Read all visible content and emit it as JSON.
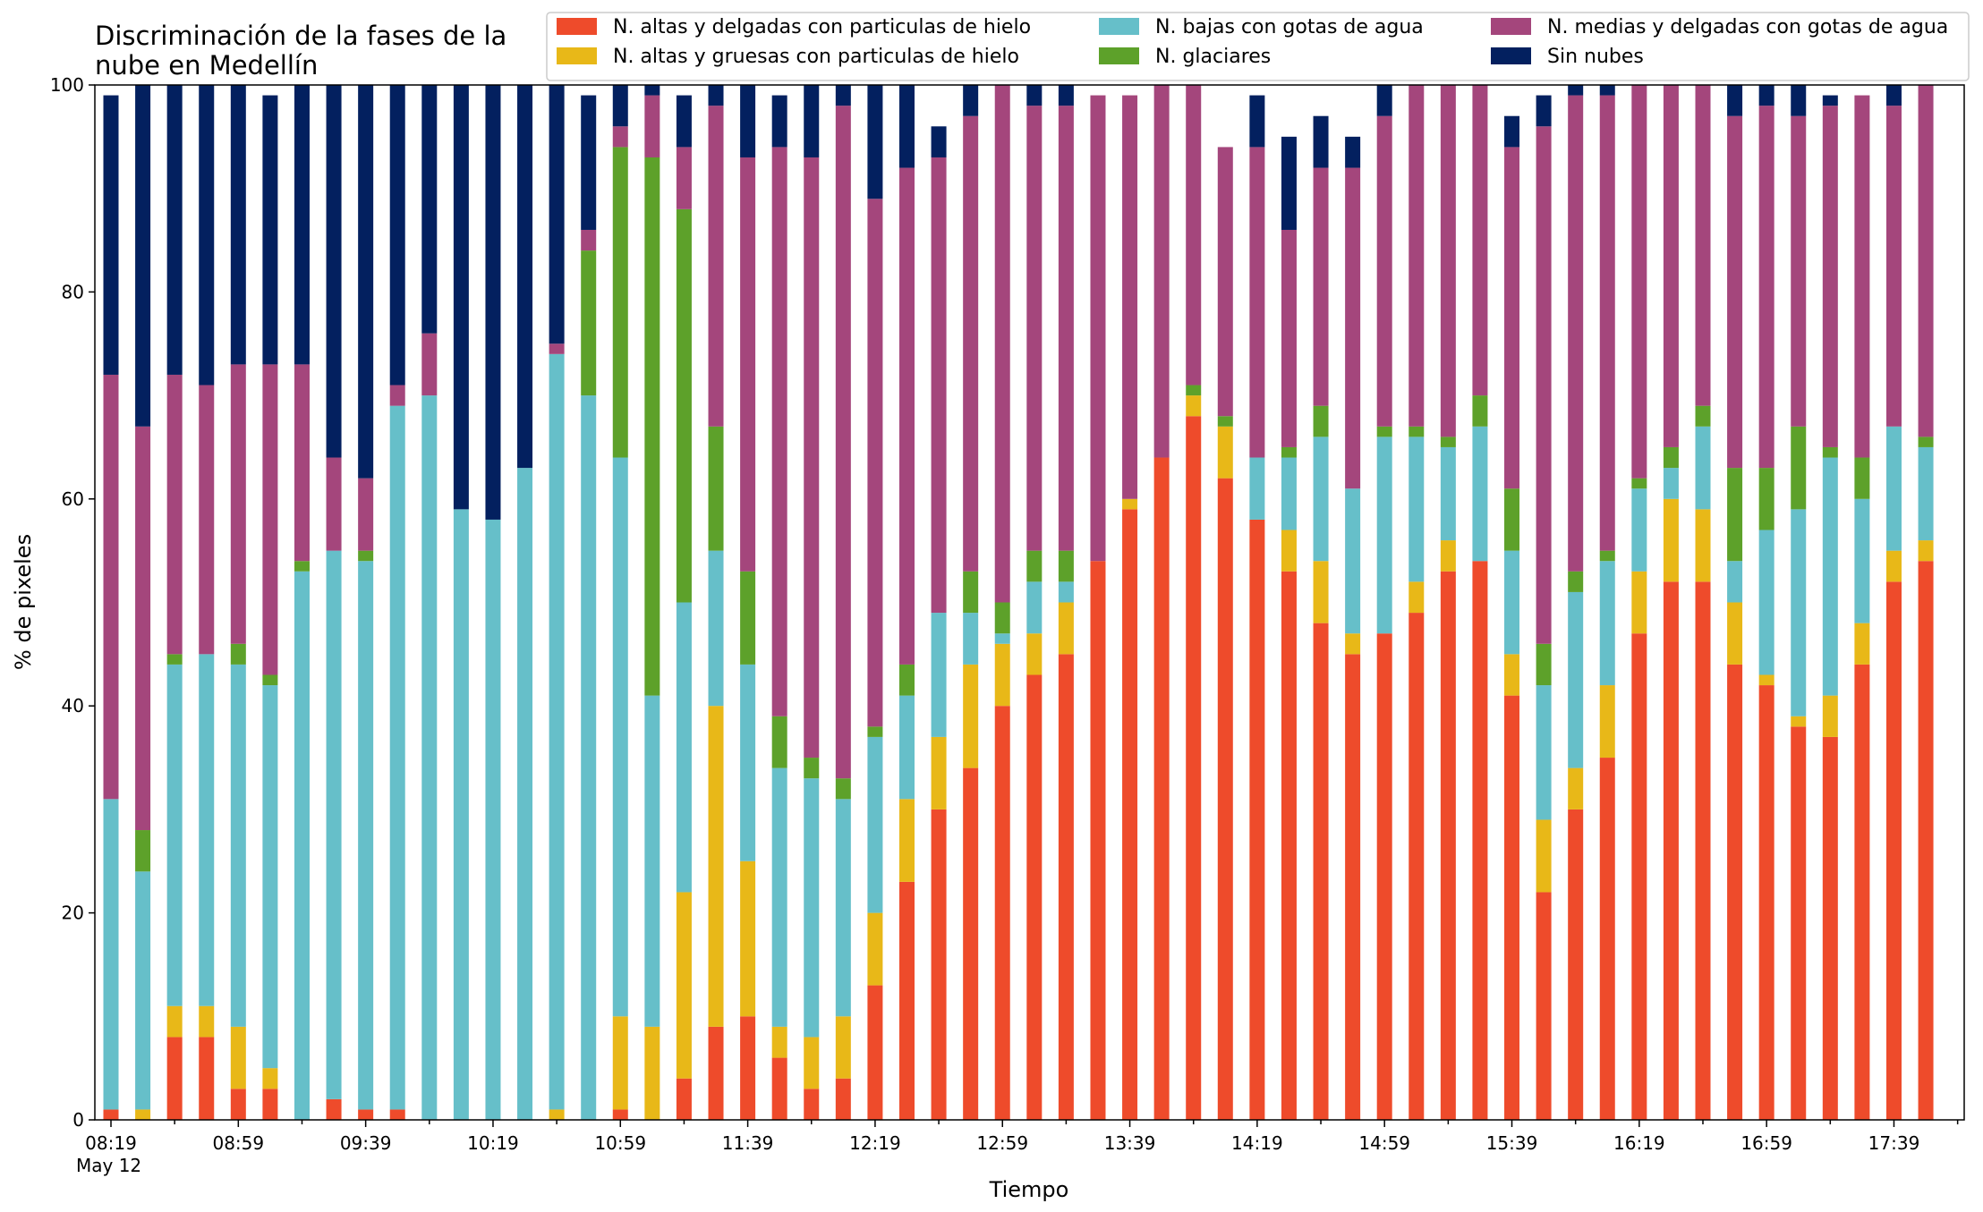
{
  "chart_data": {
    "type": "bar",
    "stacked": true,
    "title_lines": [
      "Discriminación de la fases de la",
      "nube en Medellín"
    ],
    "xlabel": "Tiempo",
    "ylabel": "% de pixeles",
    "ylim": [
      0,
      100
    ],
    "yticks": [
      "0",
      "20",
      "40",
      "60",
      "80",
      "100"
    ],
    "xtick_labels": [
      "08:19",
      "08:59",
      "09:39",
      "10:19",
      "10:59",
      "11:39",
      "12:19",
      "12:59",
      "13:39",
      "14:19",
      "14:59",
      "15:39",
      "16:19",
      "16:59",
      "17:39"
    ],
    "xtick_date": "May 12",
    "grid": false,
    "legend_position": "top-right",
    "categories": [
      "08:19",
      "08:29",
      "08:39",
      "08:49",
      "08:59",
      "09:09",
      "09:19",
      "09:29",
      "09:39",
      "09:49",
      "09:59",
      "10:09",
      "10:19",
      "10:29",
      "10:39",
      "10:49",
      "10:59",
      "11:09",
      "11:19",
      "11:29",
      "11:39",
      "11:49",
      "11:59",
      "12:09",
      "12:19",
      "12:29",
      "12:39",
      "12:49",
      "12:59",
      "13:09",
      "13:19",
      "13:29",
      "13:39",
      "13:49",
      "13:59",
      "14:09",
      "14:19",
      "14:29",
      "14:39",
      "14:49",
      "14:59",
      "15:09",
      "15:19",
      "15:29",
      "15:39",
      "15:49",
      "15:59",
      "16:09",
      "16:19",
      "16:29",
      "16:39",
      "16:49",
      "16:59",
      "17:09",
      "17:19",
      "17:29",
      "17:39",
      "17:49"
    ],
    "series": [
      {
        "name": "N. altas y delgadas con particulas de hielo",
        "color": "#ee4b2b",
        "values": [
          1,
          0,
          8,
          8,
          3,
          3,
          0,
          2,
          1,
          1,
          0,
          0,
          0,
          0,
          0,
          0,
          1,
          0,
          4,
          9,
          10,
          6,
          3,
          4,
          13,
          23,
          30,
          34,
          40,
          43,
          45,
          54,
          59,
          64,
          68,
          62,
          58,
          53,
          48,
          45,
          47,
          49,
          53,
          54,
          41,
          22,
          30,
          35,
          47,
          52,
          52,
          44,
          42,
          38,
          37,
          44,
          52,
          54
        ]
      },
      {
        "name": "N. altas y gruesas con particulas de hielo",
        "color": "#e8b818",
        "values": [
          0,
          1,
          3,
          3,
          6,
          2,
          0,
          0,
          0,
          0,
          0,
          0,
          0,
          0,
          1,
          0,
          9,
          9,
          18,
          31,
          15,
          3,
          5,
          6,
          7,
          8,
          7,
          10,
          6,
          4,
          5,
          0,
          1,
          0,
          2,
          5,
          0,
          4,
          6,
          2,
          0,
          3,
          3,
          0,
          4,
          7,
          4,
          7,
          6,
          8,
          7,
          6,
          1,
          1,
          4,
          4,
          3,
          2
        ]
      },
      {
        "name": "N. bajas con gotas de agua",
        "color": "#66bfc9",
        "values": [
          30,
          23,
          33,
          34,
          35,
          37,
          53,
          53,
          53,
          68,
          70,
          59,
          58,
          63,
          73,
          70,
          54,
          32,
          28,
          15,
          19,
          25,
          25,
          21,
          17,
          10,
          12,
          5,
          1,
          5,
          2,
          0,
          0,
          0,
          0,
          0,
          6,
          7,
          12,
          14,
          19,
          14,
          9,
          13,
          10,
          13,
          17,
          12,
          8,
          3,
          8,
          4,
          14,
          20,
          23,
          12,
          12,
          9
        ]
      },
      {
        "name": "N. glaciares",
        "color": "#5da12a",
        "values": [
          0,
          4,
          1,
          0,
          2,
          1,
          1,
          0,
          1,
          0,
          0,
          0,
          0,
          0,
          0,
          14,
          30,
          52,
          38,
          12,
          9,
          5,
          2,
          2,
          1,
          3,
          0,
          4,
          3,
          3,
          3,
          0,
          0,
          0,
          1,
          1,
          0,
          1,
          3,
          0,
          1,
          1,
          1,
          3,
          6,
          4,
          2,
          1,
          1,
          2,
          2,
          9,
          6,
          8,
          1,
          4,
          0,
          1
        ]
      },
      {
        "name": "N. medias y delgadas con gotas de agua",
        "color": "#a4467c",
        "values": [
          41,
          39,
          27,
          26,
          27,
          30,
          19,
          9,
          7,
          2,
          6,
          0,
          0,
          0,
          1,
          2,
          2,
          6,
          6,
          31,
          40,
          55,
          58,
          65,
          51,
          48,
          44,
          44,
          50,
          43,
          43,
          45,
          39,
          36,
          29,
          26,
          30,
          21,
          23,
          31,
          30,
          33,
          34,
          33,
          33,
          50,
          46,
          44,
          38,
          35,
          31,
          34,
          35,
          30,
          33,
          35,
          31,
          34
        ]
      },
      {
        "name": "Sin nubes",
        "color": "#03205f",
        "values": [
          27,
          36,
          29,
          29,
          27,
          26,
          27,
          36,
          38,
          29,
          24,
          41,
          42,
          37,
          25,
          13,
          4,
          2,
          5,
          2,
          8,
          5,
          7,
          2,
          11,
          8,
          3,
          3,
          0,
          2,
          3,
          0,
          0,
          0,
          0,
          0,
          5,
          9,
          5,
          3,
          8,
          0,
          0,
          0,
          3,
          3,
          1,
          1,
          0,
          0,
          0,
          3,
          2,
          3,
          1,
          0,
          2,
          0
        ]
      }
    ]
  }
}
